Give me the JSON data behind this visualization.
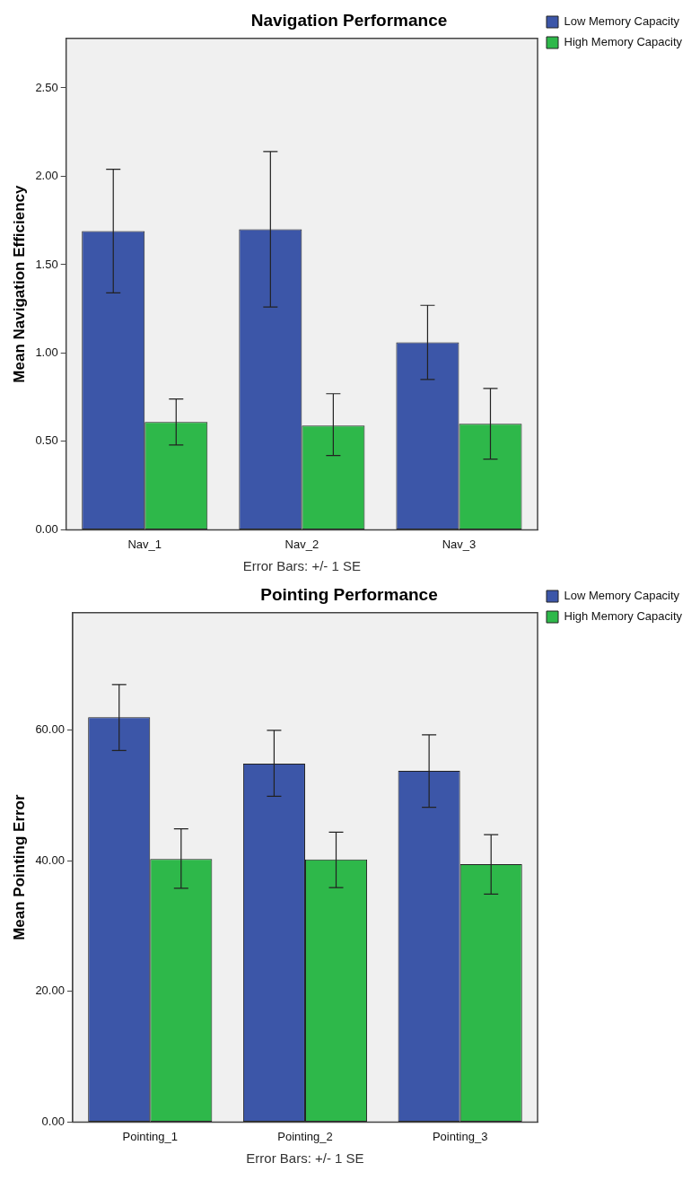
{
  "chart_data": [
    {
      "type": "bar",
      "title": "Navigation Performance",
      "ylabel": "Mean Navigation Efficiency",
      "categories": [
        "Nav_1",
        "Nav_2",
        "Nav_3"
      ],
      "series": [
        {
          "name": "Low Memory Capacity",
          "color": "#3c56a8",
          "values": [
            1.69,
            1.7,
            1.06
          ],
          "errors": [
            [
              1.34,
              2.04
            ],
            [
              1.26,
              2.14
            ],
            [
              0.85,
              1.27
            ]
          ]
        },
        {
          "name": "High Memory Capacity",
          "color": "#2eb84a",
          "values": [
            0.61,
            0.59,
            0.6
          ],
          "errors": [
            [
              0.48,
              0.74
            ],
            [
              0.42,
              0.77
            ],
            [
              0.4,
              0.8
            ]
          ]
        }
      ],
      "ylim": [
        0,
        2.78
      ],
      "yticks": [
        {
          "value": 0,
          "label": "0.00"
        },
        {
          "value": 0.5,
          "label": "0.50"
        },
        {
          "value": 1,
          "label": "1.00"
        },
        {
          "value": 1.5,
          "label": "1.50"
        },
        {
          "value": 2,
          "label": "2.00"
        },
        {
          "value": 2.5,
          "label": "2.50"
        }
      ],
      "grid": false,
      "legend": "right",
      "annotations": [
        "Error Bars: +/- 1 SE"
      ]
    },
    {
      "type": "bar",
      "title": "Pointing Performance",
      "ylabel": "Mean Pointing Error",
      "categories": [
        "Pointing_1",
        "Pointing_2",
        "Pointing_3"
      ],
      "series": [
        {
          "name": "Low Memory Capacity",
          "color": "#3c56a8",
          "values": [
            62.0,
            54.9,
            53.8
          ],
          "errors": [
            [
              56.9,
              67.0
            ],
            [
              49.9,
              60.0
            ],
            [
              48.2,
              59.3
            ]
          ]
        },
        {
          "name": "High Memory Capacity",
          "color": "#2eb84a",
          "values": [
            40.3,
            40.2,
            39.5
          ],
          "errors": [
            [
              35.8,
              44.9
            ],
            [
              35.9,
              44.4
            ],
            [
              34.9,
              44.0
            ]
          ]
        }
      ],
      "ylim": [
        0,
        78
      ],
      "yticks": [
        {
          "value": 0,
          "label": "0.00"
        },
        {
          "value": 20,
          "label": "20.00"
        },
        {
          "value": 40,
          "label": "40.00"
        },
        {
          "value": 60,
          "label": "60.00"
        }
      ],
      "grid": false,
      "legend": "right",
      "annotations": [
        "Error Bars: +/- 1 SE"
      ]
    }
  ]
}
